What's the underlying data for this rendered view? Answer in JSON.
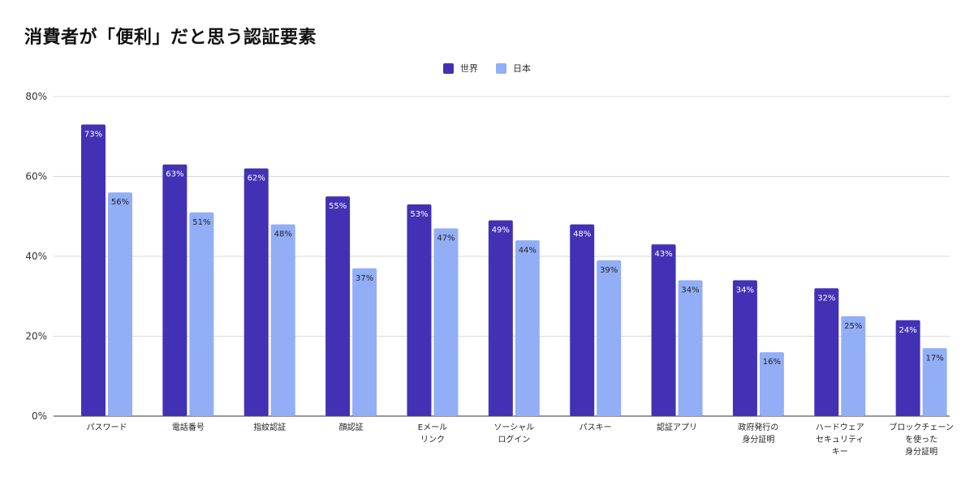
{
  "chart_data": {
    "type": "bar",
    "title": "消費者が「便利」だと思う認証要素",
    "categories": [
      [
        "パスワード"
      ],
      [
        "電話番号"
      ],
      [
        "指紋認証"
      ],
      [
        "顔認証"
      ],
      [
        "Eメール",
        "リンク"
      ],
      [
        "ソーシャル",
        "ログイン"
      ],
      [
        "パスキー"
      ],
      [
        "認証アプリ"
      ],
      [
        "政府発行の",
        "身分証明"
      ],
      [
        "ハードウェア",
        "セキュリティ",
        "キー"
      ],
      [
        "ブロックチェーン",
        "を使った",
        "身分証明"
      ]
    ],
    "series": [
      {
        "name": "世界",
        "color": "#4331b5",
        "label_color": "#ffffff",
        "values": [
          73,
          63,
          62,
          55,
          53,
          49,
          48,
          43,
          34,
          32,
          24
        ]
      },
      {
        "name": "日本",
        "color": "#92aef7",
        "label_color": "#222222",
        "values": [
          56,
          51,
          48,
          37,
          47,
          44,
          39,
          34,
          16,
          25,
          17
        ]
      }
    ],
    "ylim": [
      0,
      80
    ],
    "yticks": [
      0,
      20,
      40,
      60,
      80
    ],
    "ytick_labels": [
      "0%",
      "20%",
      "40%",
      "60%",
      "80%"
    ],
    "value_suffix": "%",
    "xlabel": "",
    "ylabel": "",
    "grid": true,
    "legend_position": "top-center"
  }
}
